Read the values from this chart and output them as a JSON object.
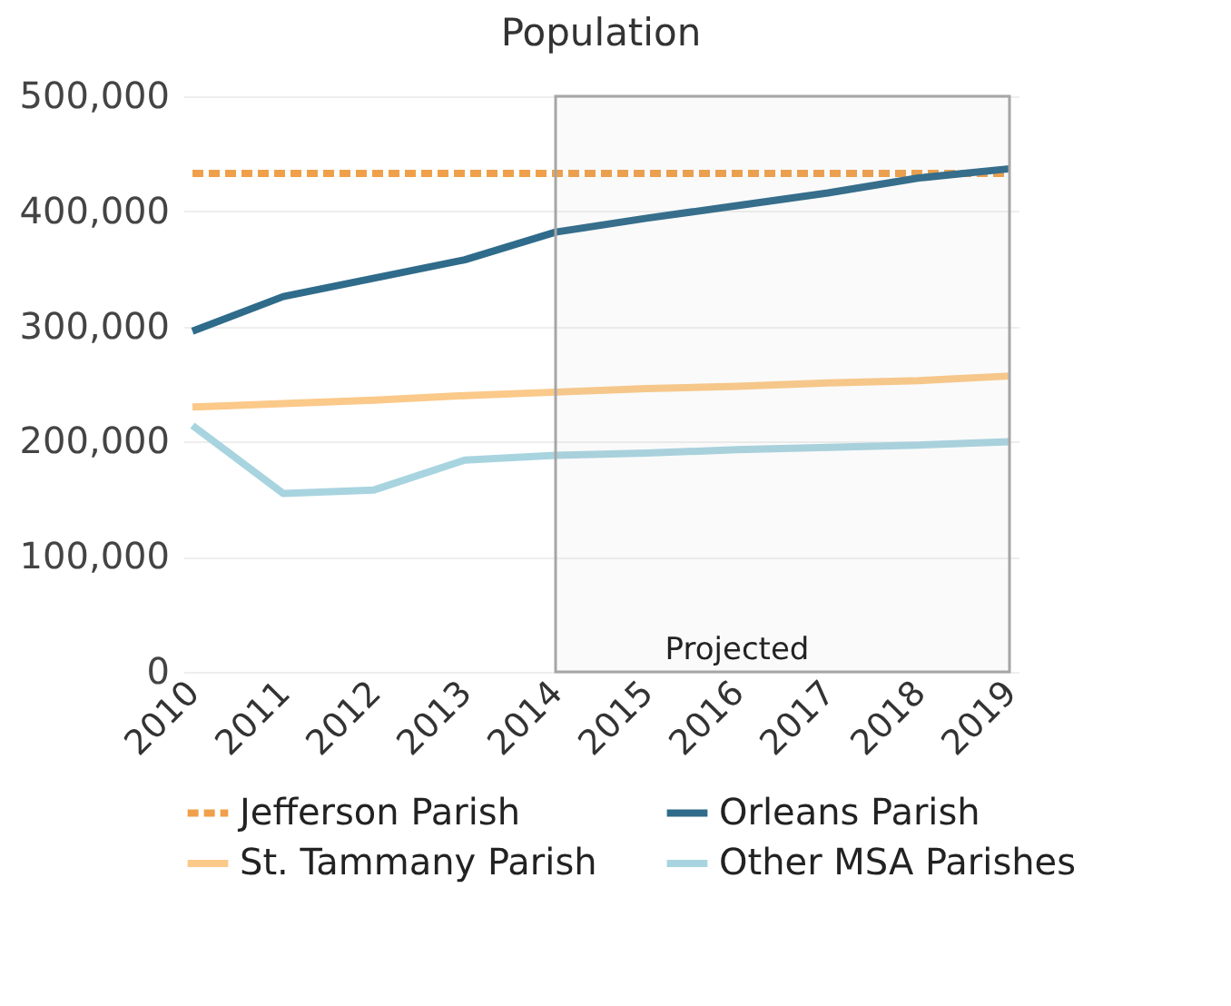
{
  "chart_data": {
    "type": "line",
    "title": "Population",
    "categories": [
      "2010",
      "2011",
      "2012",
      "2013",
      "2014",
      "2015",
      "2016",
      "2017",
      "2018",
      "2019"
    ],
    "series": [
      {
        "name": "Jefferson Parish",
        "color": "#f0a04a",
        "line_style": "dashed",
        "values": [
          433000,
          433000,
          433000,
          433000,
          433000,
          433000,
          433000,
          433000,
          433000,
          433000
        ]
      },
      {
        "name": "Orleans Parish",
        "color": "#2f6b8a",
        "line_style": "solid",
        "values": [
          296000,
          326000,
          342000,
          358000,
          382000,
          394000,
          405000,
          416000,
          429000,
          437000
        ]
      },
      {
        "name": "St. Tammany Parish",
        "color": "#fbc989",
        "line_style": "solid",
        "values": [
          230000,
          233000,
          236000,
          240000,
          243000,
          246000,
          248000,
          251000,
          253000,
          257000
        ]
      },
      {
        "name": "Other MSA Parishes",
        "color": "#a8d4e0",
        "line_style": "solid",
        "values": [
          214000,
          155000,
          158000,
          184000,
          188000,
          190000,
          193000,
          195000,
          197000,
          200000
        ]
      }
    ],
    "ylim": [
      0,
      500000
    ],
    "yticks": [
      0,
      {
        "value": 100000,
        "label": "100,000"
      },
      {
        "value": 200000,
        "label": "200,000"
      },
      {
        "value": 300000,
        "label": "300,000"
      },
      {
        "value": 400000,
        "label": "400,000"
      },
      {
        "value": 500000,
        "label": "500,000"
      }
    ],
    "grid": "y",
    "legend": "bottom",
    "marker": "none",
    "bands": [
      {
        "axis": "x",
        "from": "2014",
        "to": "2019",
        "label": "Projected",
        "color": "#a6a6a6"
      }
    ]
  }
}
